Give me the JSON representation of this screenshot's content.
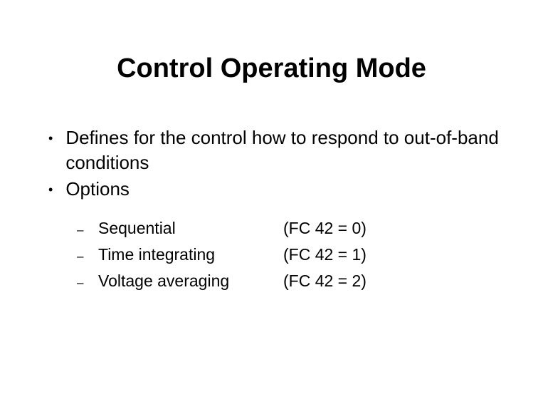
{
  "title": "Control Operating Mode",
  "main_bullets": [
    "Defines for the control how to respond to out-of-band conditions",
    "Options"
  ],
  "sub_options": [
    {
      "label": "Sequential",
      "value": "(FC 42 = 0)"
    },
    {
      "label": "Time integrating",
      "value": "(FC 42 = 1)"
    },
    {
      "label": "Voltage averaging",
      "value": "(FC 42 = 2)"
    }
  ]
}
